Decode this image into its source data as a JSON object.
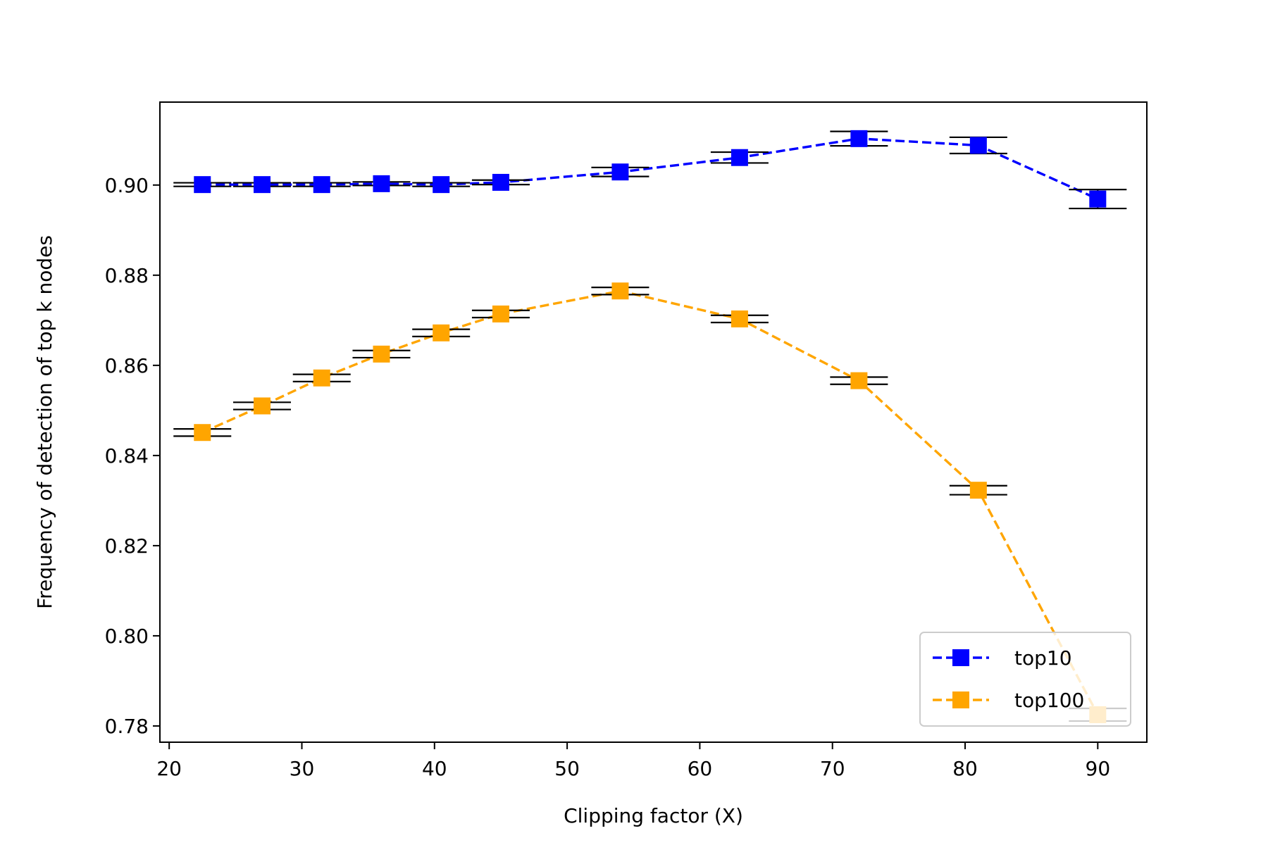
{
  "chart_data": {
    "type": "line",
    "xlabel": "Clipping factor (X)",
    "ylabel": "Frequency of detection of top k nodes",
    "xlim": [
      19.3,
      93.7
    ],
    "ylim": [
      0.7764,
      0.9184
    ],
    "xticks": [
      20,
      30,
      40,
      50,
      60,
      70,
      80,
      90
    ],
    "yticks": [
      0.78,
      0.8,
      0.82,
      0.84,
      0.86,
      0.88,
      0.9
    ],
    "x_tick_labels": [
      "20",
      "30",
      "40",
      "50",
      "60",
      "70",
      "80",
      "90"
    ],
    "y_tick_labels": [
      "0.78",
      "0.80",
      "0.82",
      "0.84",
      "0.86",
      "0.88",
      "0.90"
    ],
    "grid": false,
    "legend_position": "lower right",
    "x": [
      22.5,
      27,
      31.5,
      36,
      40.5,
      45,
      54,
      63,
      72,
      81,
      90
    ],
    "series": [
      {
        "name": "top10",
        "color": "#0000ff",
        "marker": "square",
        "line_style": "dashed",
        "values": [
          0.9001,
          0.9001,
          0.9001,
          0.9003,
          0.9001,
          0.9006,
          0.9029,
          0.9061,
          0.9103,
          0.9088,
          0.8969
        ],
        "errors": [
          0.0004,
          0.0004,
          0.0004,
          0.0004,
          0.0004,
          0.0005,
          0.001,
          0.0012,
          0.0016,
          0.0018,
          0.0021
        ]
      },
      {
        "name": "top100",
        "color": "#ffa500",
        "marker": "square",
        "line_style": "dashed",
        "values": [
          0.8451,
          0.851,
          0.8572,
          0.8625,
          0.8672,
          0.8714,
          0.8765,
          0.8703,
          0.8566,
          0.8323,
          0.7825
        ],
        "errors": [
          0.0008,
          0.0008,
          0.0008,
          0.0008,
          0.0008,
          0.0008,
          0.0008,
          0.0008,
          0.0008,
          0.001,
          0.0014
        ]
      }
    ]
  }
}
